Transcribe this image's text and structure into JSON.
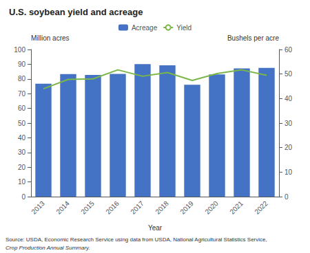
{
  "chart_data": {
    "type": "bar",
    "title": "U.S. soybean yield and acreage",
    "xlabel": "Year",
    "ylabel": "Million acres",
    "y2label": "Bushels per acre",
    "categories": [
      "2013",
      "2014",
      "2015",
      "2016",
      "2017",
      "2018",
      "2019",
      "2020",
      "2021",
      "2022"
    ],
    "series": [
      {
        "name": "Acreage",
        "type": "bar",
        "color": "#4472C4",
        "values": [
          76.8,
          83.3,
          82.7,
          83.4,
          90.1,
          89.2,
          76.1,
          83.1,
          87.2,
          87.5
        ]
      },
      {
        "name": "Yield",
        "type": "line",
        "color": "#7AB648",
        "axis": "y2",
        "values": [
          44.0,
          47.8,
          48.0,
          51.7,
          49.1,
          50.6,
          47.4,
          50.2,
          51.7,
          49.5
        ]
      }
    ],
    "ylim": [
      0,
      100
    ],
    "yticks": [
      0,
      10,
      20,
      30,
      40,
      50,
      60,
      70,
      80,
      90,
      100
    ],
    "y2lim": [
      0,
      60
    ],
    "y2ticks": [
      0,
      10,
      20,
      30,
      40,
      50,
      60
    ],
    "grid": false,
    "legend": "top",
    "annotations": [
      "Source: USDA, Economic Research Service using data from USDA, National Agricultural Statistics Service,",
      "Crop Production Annual Summary."
    ]
  }
}
